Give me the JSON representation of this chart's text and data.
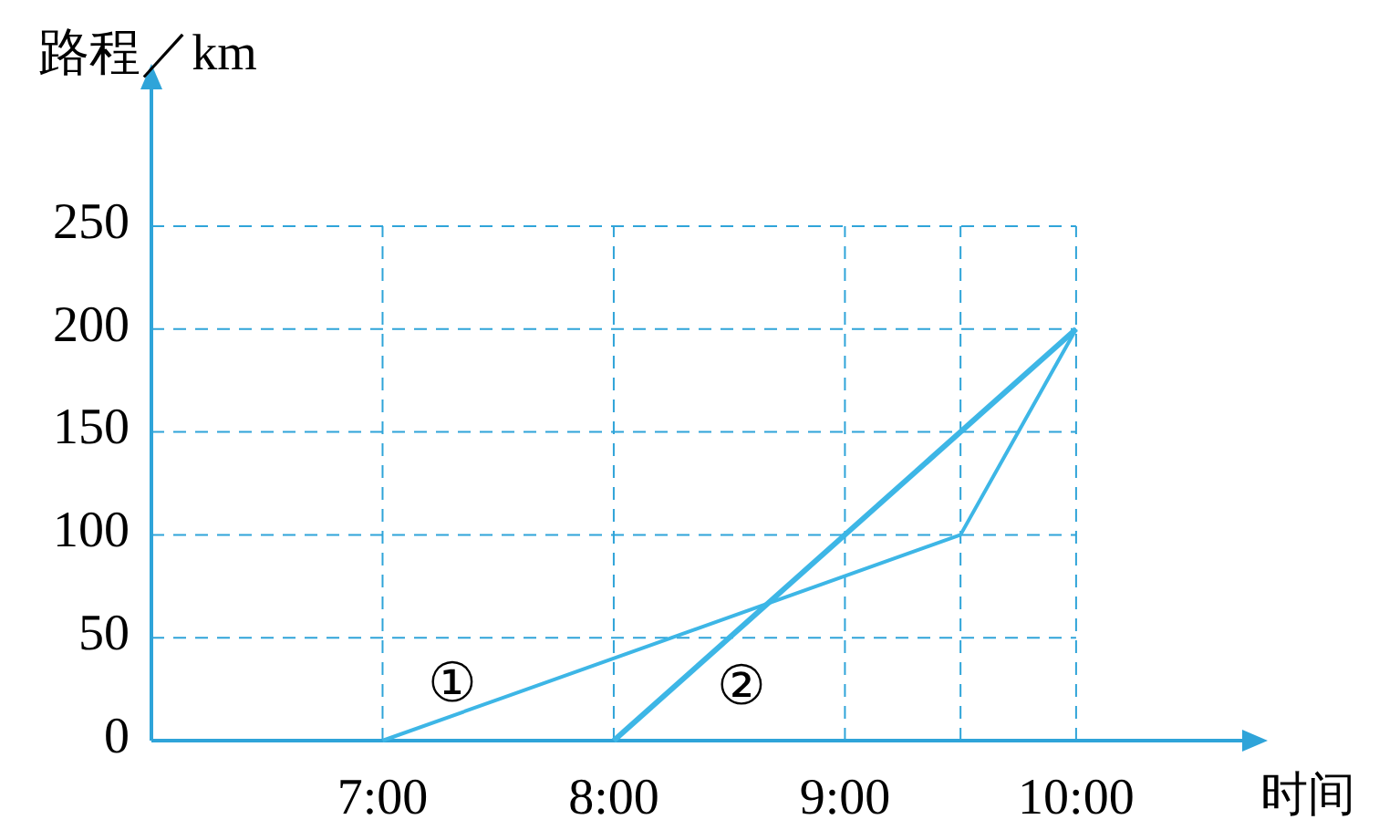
{
  "chart_data": {
    "type": "line",
    "xlabel": "时间",
    "ylabel": "路程／km",
    "xlim": [
      6,
      10.75
    ],
    "ylim": [
      0,
      320
    ],
    "xticks": [
      {
        "value": 7,
        "label": "7:00"
      },
      {
        "value": 8,
        "label": "8:00"
      },
      {
        "value": 9,
        "label": "9:00"
      },
      {
        "value": 9.5,
        "label": null
      },
      {
        "value": 10,
        "label": "10:00"
      }
    ],
    "yticks": [
      0,
      50,
      100,
      150,
      200,
      250
    ],
    "grid": true,
    "line_style": "solid",
    "marker": "none",
    "series": [
      {
        "name": "①",
        "color": "#3db6e6",
        "x": [
          7,
          9.5,
          10
        ],
        "values": [
          0,
          100,
          200
        ]
      },
      {
        "name": "②",
        "color": "#3db6e6",
        "x": [
          8,
          10
        ],
        "values": [
          0,
          200
        ]
      }
    ]
  }
}
